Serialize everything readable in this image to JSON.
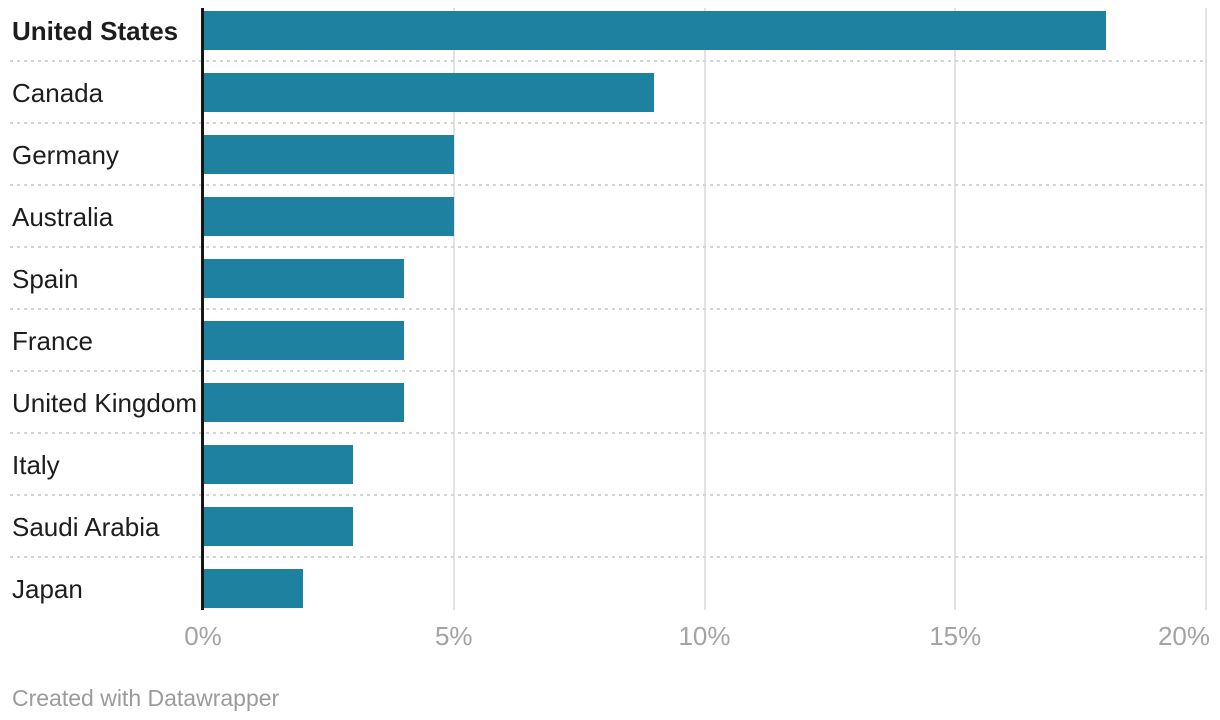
{
  "chart_data": {
    "type": "bar",
    "orientation": "horizontal",
    "title": "",
    "xlabel": "",
    "ylabel": "",
    "categories": [
      "United States",
      "Canada",
      "Germany",
      "Australia",
      "Spain",
      "France",
      "United Kingdom",
      "Italy",
      "Saudi Arabia",
      "Japan"
    ],
    "values": [
      18,
      9,
      5,
      5,
      4,
      4,
      4,
      3,
      3,
      2
    ],
    "unit": "%",
    "xlim": [
      0,
      20
    ],
    "x_ticks": [
      {
        "value": 0,
        "label": "0%"
      },
      {
        "value": 5,
        "label": "5%"
      },
      {
        "value": 10,
        "label": "10%"
      },
      {
        "value": 15,
        "label": "15%"
      },
      {
        "value": 20,
        "label": "20%"
      }
    ],
    "highlighted_category": "United States",
    "grid": true,
    "legend": "none"
  },
  "footer": {
    "text": "Created with Datawrapper"
  },
  "colors": {
    "bar": "#1f81a0",
    "label": "#1d1d1d",
    "tick": "#a3a3a3",
    "gridline": "#e2e2e2",
    "zero_axis": "#161616",
    "separator": "#d4d4d4",
    "footer_text": "#9b9b9b",
    "background": "#ffffff"
  }
}
